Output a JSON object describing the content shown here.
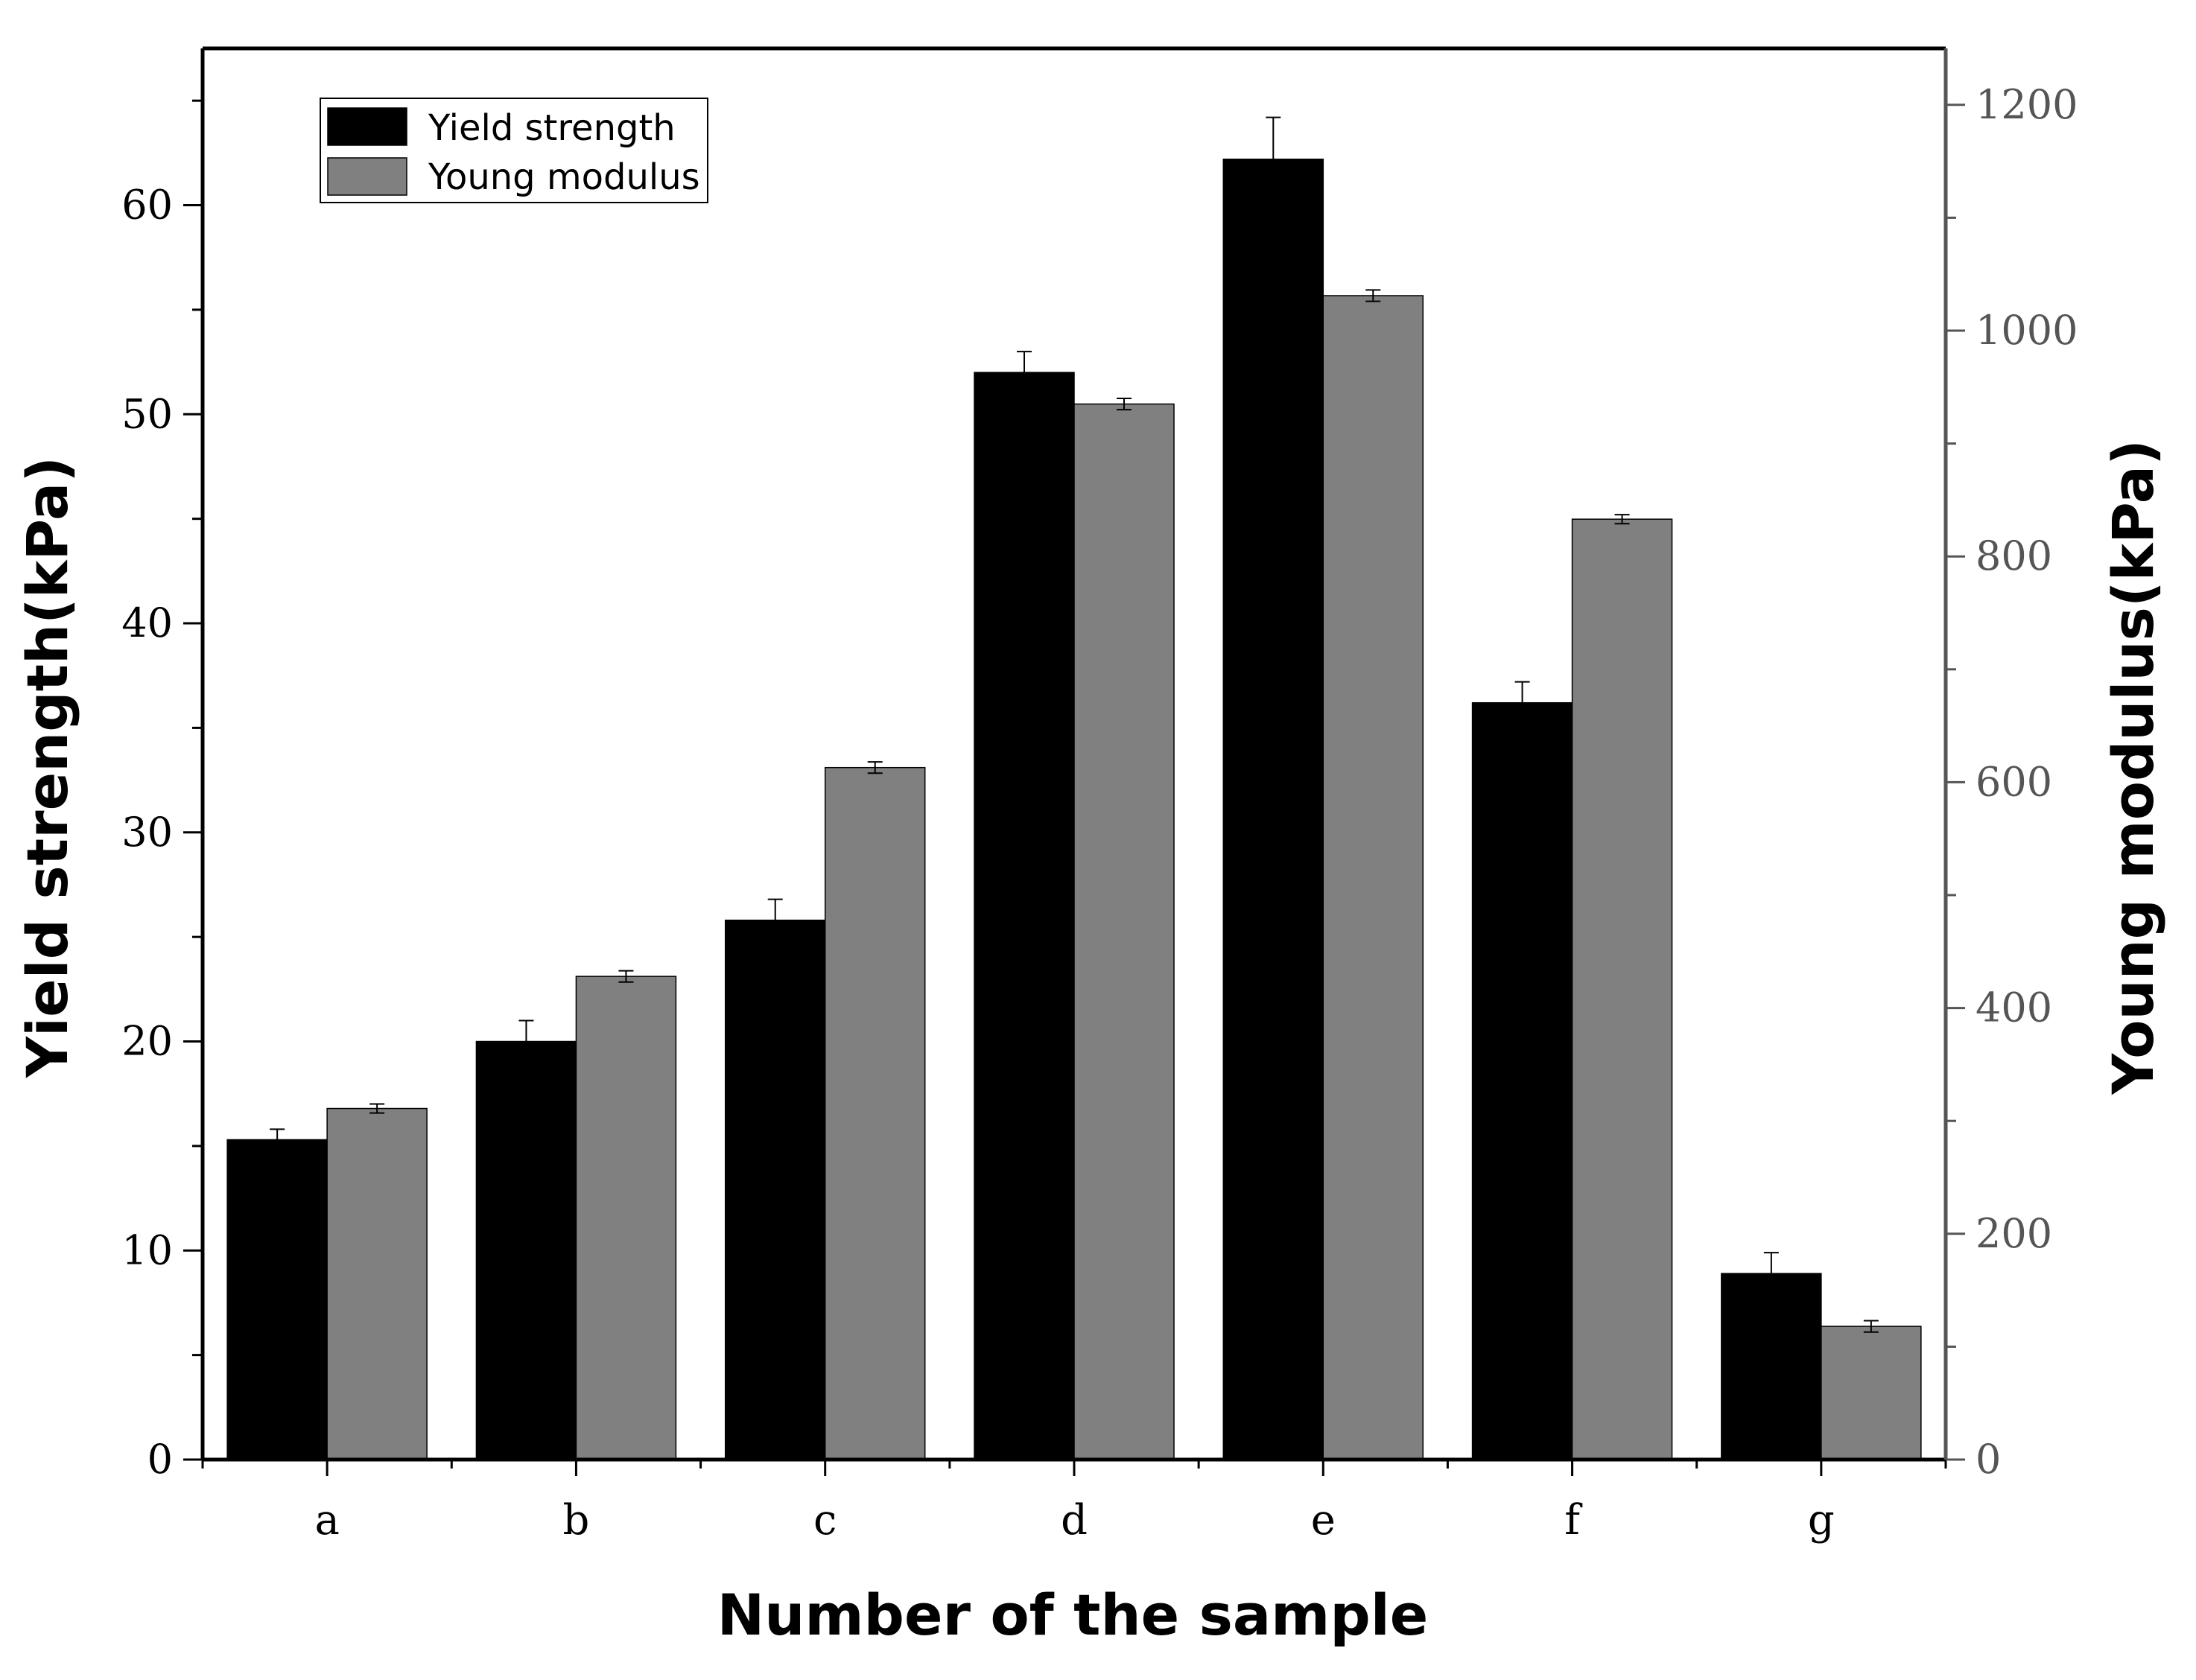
{
  "chart_data": {
    "type": "bar",
    "categories": [
      "a",
      "b",
      "c",
      "d",
      "e",
      "f",
      "g"
    ],
    "series": [
      {
        "name": "Yield strength",
        "axis": "left",
        "color": "#000000",
        "values": [
          15.3,
          20.0,
          25.8,
          52.0,
          62.2,
          36.2,
          8.9
        ],
        "errors": [
          0.5,
          1.0,
          1.0,
          1.0,
          2.0,
          1.0,
          1.0
        ]
      },
      {
        "name": "Young modulus",
        "axis": "right",
        "color": "#808080",
        "values": [
          311,
          428,
          613,
          935,
          1031,
          833,
          118
        ],
        "errors": [
          4,
          5,
          5,
          5,
          5,
          4,
          5
        ]
      }
    ],
    "xlabel": "Number of the sample",
    "ylabel": "Yield strength(kPa)",
    "y2label": "Young modulus(kPa)",
    "ylim": [
      0,
      67.5
    ],
    "y2lim": [
      0,
      1250
    ],
    "yticks": [
      "0",
      "10",
      "20",
      "30",
      "40",
      "50",
      "60"
    ],
    "y2ticks": [
      "0",
      "200",
      "400",
      "600",
      "800",
      "1000",
      "1200"
    ],
    "grid": false,
    "legend_position": "top-left"
  },
  "colors": {
    "yield_bar": "#000000",
    "young_bar": "#808080",
    "right_axis": "#555555"
  }
}
